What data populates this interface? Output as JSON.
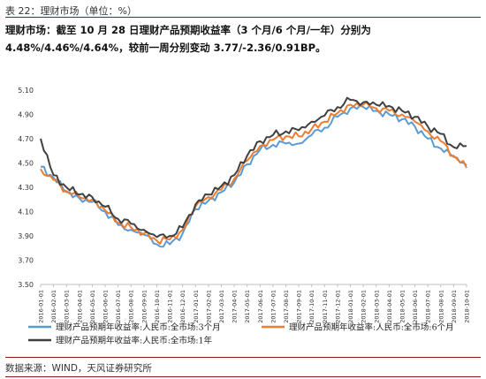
{
  "caption": "表 22：理财市场（单位：%）",
  "summary": "理财市场：截至 10 月 28 日理财产品预期收益率（3 个月/6 个月/一年）分别为 4.48%/4.46%/4.64%，较前一周分别变动 3.77/-2.36/0.91BP。",
  "source": "数据来源：WIND，天风证券研究所",
  "colors": {
    "series_3m": "#5b9bd5",
    "series_6m": "#ed7d31",
    "series_1y": "#404040",
    "rule": "#8c1c1c"
  },
  "chart_data": {
    "type": "line",
    "title": "",
    "xlabel": "",
    "ylabel": "",
    "ylim": [
      3.5,
      5.1
    ],
    "y_ticks": [
      "5.10",
      "4.90",
      "4.70",
      "4.50",
      "4.30",
      "4.10",
      "3.90",
      "3.70",
      "3.50"
    ],
    "x_ticks": [
      "2016-01-01",
      "2016-02-01",
      "2016-03-01",
      "2016-04-01",
      "2016-05-01",
      "2016-06-01",
      "2016-07-01",
      "2016-08-01",
      "2016-09-01",
      "2016-10-01",
      "2016-11-01",
      "2016-12-01",
      "2017-01-01",
      "2017-02-01",
      "2017-03-01",
      "2017-04-01",
      "2017-05-01",
      "2017-06-01",
      "2017-07-01",
      "2017-08-01",
      "2017-09-01",
      "2017-10-01",
      "2017-11-01",
      "2017-12-01",
      "2018-01-01",
      "2018-02-01",
      "2018-03-01",
      "2018-04-01",
      "2018-05-01",
      "2018-06-01",
      "2018-07-01",
      "2018-08-01",
      "2018-09-01",
      "2018-10-01"
    ],
    "grid": false,
    "legend": "bottom",
    "series": [
      {
        "name": "理财产品预期年收益率:人民币:全市场:3个月",
        "color": "#5b9bd5",
        "values": [
          4.47,
          4.38,
          4.26,
          4.21,
          4.18,
          4.1,
          3.99,
          3.95,
          3.91,
          3.83,
          3.83,
          3.92,
          4.12,
          4.19,
          4.26,
          4.34,
          4.49,
          4.61,
          4.65,
          4.66,
          4.66,
          4.73,
          4.79,
          4.88,
          4.95,
          4.96,
          4.93,
          4.9,
          4.86,
          4.8,
          4.7,
          4.62,
          4.55,
          4.48
        ]
      },
      {
        "name": "理财产品预期年收益率:人民币:全市场:6个月",
        "color": "#ed7d31",
        "values": [
          4.45,
          4.36,
          4.27,
          4.22,
          4.2,
          4.11,
          4.01,
          3.97,
          3.92,
          3.86,
          3.87,
          3.95,
          4.14,
          4.22,
          4.28,
          4.37,
          4.52,
          4.64,
          4.69,
          4.72,
          4.72,
          4.78,
          4.84,
          4.91,
          4.98,
          4.98,
          4.95,
          4.93,
          4.9,
          4.84,
          4.76,
          4.68,
          4.56,
          4.46
        ]
      },
      {
        "name": "理财产品预期年收益率:人民币:全市场:1年",
        "color": "#404040",
        "values": [
          4.7,
          4.4,
          4.3,
          4.24,
          4.22,
          4.14,
          4.04,
          4.0,
          3.95,
          3.89,
          3.9,
          3.97,
          4.16,
          4.24,
          4.31,
          4.4,
          4.56,
          4.68,
          4.73,
          4.76,
          4.77,
          4.84,
          4.89,
          4.96,
          5.02,
          5.0,
          4.98,
          4.97,
          4.93,
          4.88,
          4.8,
          4.74,
          4.63,
          4.64
        ]
      }
    ]
  }
}
